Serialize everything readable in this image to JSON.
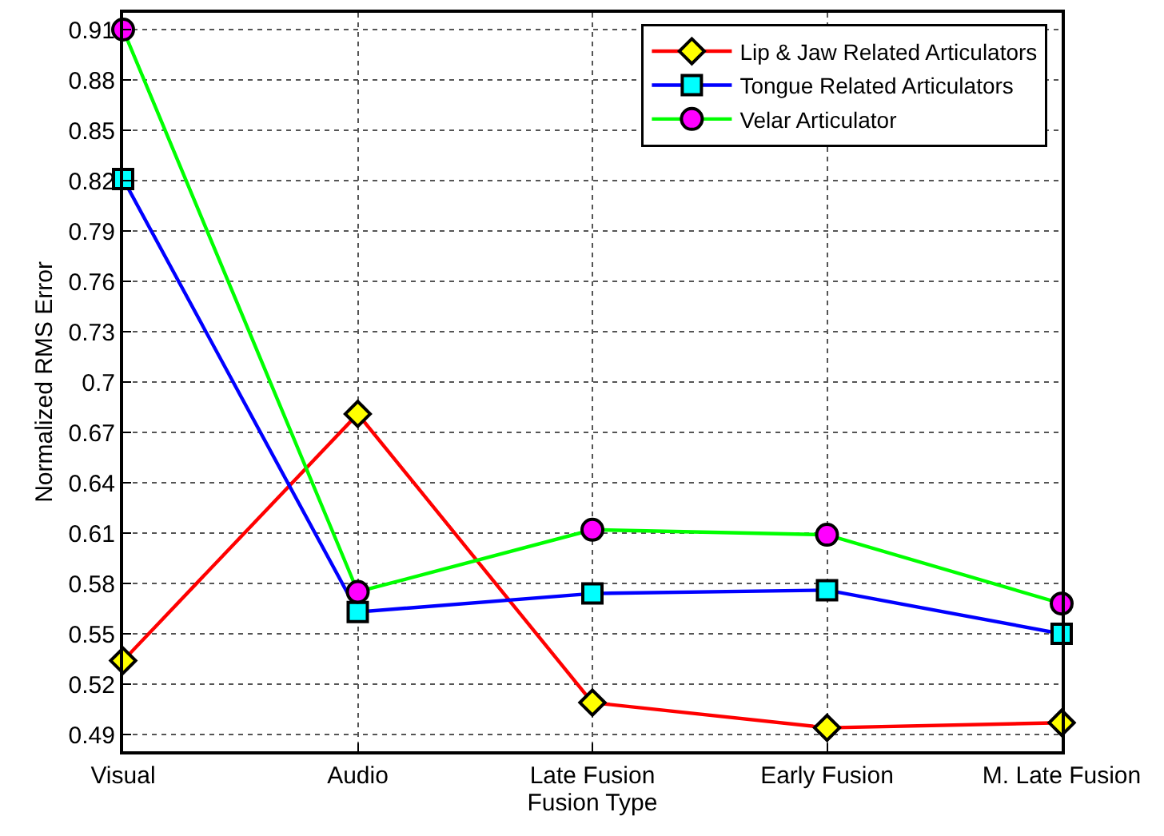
{
  "chart_data": {
    "type": "line",
    "xlabel": "Fusion Type",
    "ylabel": "Normalized RMS Error",
    "categories": [
      "Visual",
      "Audio",
      "Late Fusion",
      "Early Fusion",
      "M. Late Fusion"
    ],
    "series": [
      {
        "name": "Lip & Jaw Related Articulators",
        "color": "#ff0000",
        "marker": "diamond",
        "colors": [
          "#ffff00",
          "#ffff00",
          "#ffff00",
          "#ffff00",
          "#ffff00"
        ],
        "values": [
          0.534,
          0.681,
          0.509,
          0.494,
          0.497
        ]
      },
      {
        "name": "Tongue Related Articulators",
        "color": "#0000ff",
        "marker": "square",
        "colors": [
          "#00ffff",
          "#00ffff",
          "#00ffff",
          "#00ffff",
          "#00ffff"
        ],
        "values": [
          0.821,
          0.563,
          0.574,
          0.576,
          0.55
        ]
      },
      {
        "name": "Velar Articulator",
        "color": "#00ff00",
        "marker": "circle",
        "colors": [
          "#ff00ff",
          "#ff00ff",
          "#ff00ff",
          "#ff00ff",
          "#ff00ff"
        ],
        "values": [
          0.91,
          0.575,
          0.612,
          0.609,
          0.568
        ]
      }
    ],
    "ylim": [
      0.48,
      0.92
    ],
    "yticks": [
      0.49,
      0.52,
      0.55,
      0.58,
      0.61,
      0.64,
      0.67,
      0.7,
      0.73,
      0.76,
      0.79,
      0.82,
      0.85,
      0.88,
      0.91
    ],
    "grid": true,
    "legend": "top right",
    "line_style": "solid"
  }
}
